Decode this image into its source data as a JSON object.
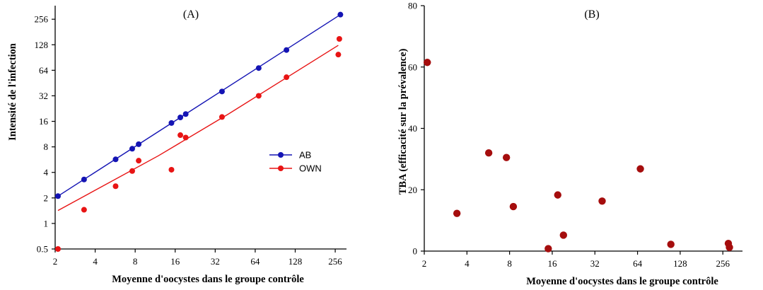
{
  "chart_data": [
    {
      "type": "scatter",
      "title": "(A)",
      "xlabel": "Moyenne d'oocystes dans le groupe contrôle",
      "ylabel": "Intensité de l'infection",
      "x_scale": "log2",
      "y_scale": "log2",
      "xlim": [
        2,
        300
      ],
      "ylim": [
        0.5,
        370
      ],
      "x_ticks": [
        2,
        4,
        8,
        16,
        32,
        64,
        128,
        256
      ],
      "x_tick_labels": [
        "2",
        "4",
        "8",
        "16",
        "32",
        "64",
        "128",
        "256"
      ],
      "y_ticks": [
        0.5,
        1,
        2,
        4,
        8,
        16,
        32,
        64,
        128,
        256
      ],
      "y_tick_labels": [
        "0.5",
        "1",
        "2",
        "4",
        "8",
        "16",
        "32",
        "64",
        "128",
        "256"
      ],
      "legend_position": "right",
      "series": [
        {
          "name": "AB",
          "color": "#1414b4",
          "x": [
            2.1,
            3.3,
            5.7,
            7.6,
            8.5,
            15,
            17.5,
            19.2,
            36,
            68,
            110,
            280
          ],
          "y": [
            2.1,
            3.3,
            5.7,
            7.6,
            8.6,
            15.3,
            17.8,
            19.5,
            36,
            68,
            111,
            290
          ],
          "fit": {
            "x": [
              2.1,
              280
            ],
            "y": [
              2.1,
              290
            ]
          }
        },
        {
          "name": "OWN",
          "color": "#e81414",
          "x": [
            2.1,
            3.3,
            5.7,
            7.6,
            8.5,
            15,
            17.5,
            19.2,
            36,
            68,
            110,
            270,
            275
          ],
          "y": [
            0.5,
            1.45,
            2.75,
            4.15,
            5.5,
            4.3,
            11,
            10.3,
            18,
            32,
            53,
            98,
            150
          ],
          "fit": {
            "x": [
              2.1,
              12,
              40,
              270
            ],
            "y": [
              1.42,
              6.3,
              19.4,
              126
            ]
          }
        }
      ]
    },
    {
      "type": "scatter",
      "title": "(B)",
      "xlabel": "Moyenne d'oocystes dans le groupe contrôle",
      "ylabel": "TBA (efficacité sur la prévalence)",
      "x_scale": "log2",
      "y_scale": "linear",
      "xlim": [
        2,
        300
      ],
      "ylim": [
        0,
        80
      ],
      "x_ticks": [
        2,
        4,
        8,
        16,
        32,
        64,
        128,
        256
      ],
      "x_tick_labels": [
        "2",
        "4",
        "8",
        "16",
        "32",
        "64",
        "128",
        "256"
      ],
      "y_ticks": [
        0,
        20,
        40,
        60,
        80
      ],
      "y_tick_labels": [
        "0",
        "20",
        "40",
        "60",
        "80"
      ],
      "series": [
        {
          "color": "#a50d0d",
          "x": [
            2.1,
            3.4,
            5.7,
            7.6,
            8.5,
            15,
            17.5,
            19.2,
            36,
            67,
            110,
            280,
            285
          ],
          "y": [
            61.5,
            12.3,
            32,
            30.5,
            14.5,
            0.8,
            18.3,
            5.2,
            16.3,
            26.8,
            2.2,
            2.5,
            1.2
          ]
        }
      ]
    }
  ]
}
